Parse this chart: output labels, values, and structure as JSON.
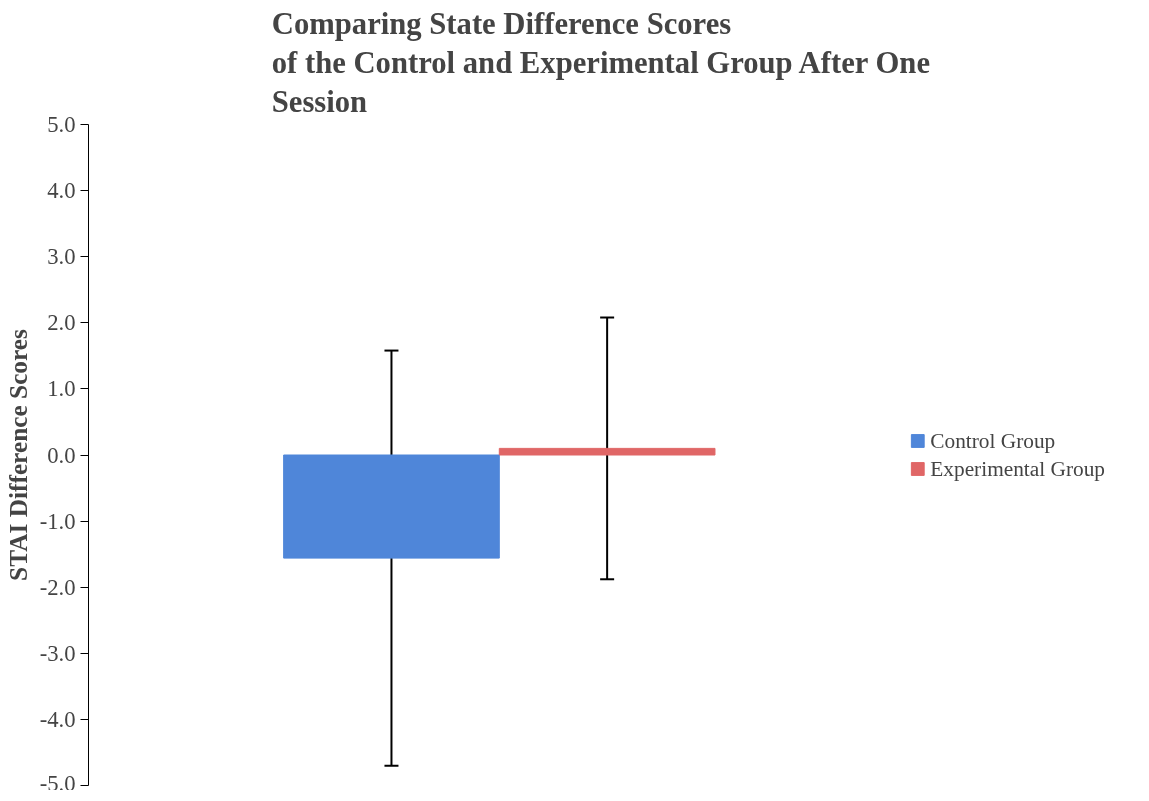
{
  "chart_data": {
    "type": "bar",
    "title": "Comparing State Difference Scores\nof the Control and Experimental Group After One\nSession",
    "ylabel": "STAI Difference Scores",
    "categories": [
      null
    ],
    "series": [
      {
        "name": "Control Group",
        "color": "#4f86d9",
        "values": [
          -1.56
        ],
        "errors": [
          3.14
        ]
      },
      {
        "name": "Experimental Group",
        "color": "#e06666",
        "values": [
          0.1
        ],
        "errors": [
          1.98
        ]
      }
    ],
    "ylim": [
      -5.0,
      5.0
    ],
    "yticks": [
      {
        "value": -5,
        "label": "-5.0"
      },
      {
        "value": -4,
        "label": "-4.0"
      },
      {
        "value": -3,
        "label": "-3.0"
      },
      {
        "value": -2,
        "label": "-2.0"
      },
      {
        "value": -1,
        "label": "-1.0"
      },
      {
        "value": 0,
        "label": "0.0"
      },
      {
        "value": 1,
        "label": "1.0"
      },
      {
        "value": 2,
        "label": "2.0"
      },
      {
        "value": 3,
        "label": "3.0"
      },
      {
        "value": 4,
        "label": "4.0"
      },
      {
        "value": 5,
        "label": "5.0"
      }
    ],
    "tick_labels": "y",
    "grid": false,
    "legend": "right"
  }
}
